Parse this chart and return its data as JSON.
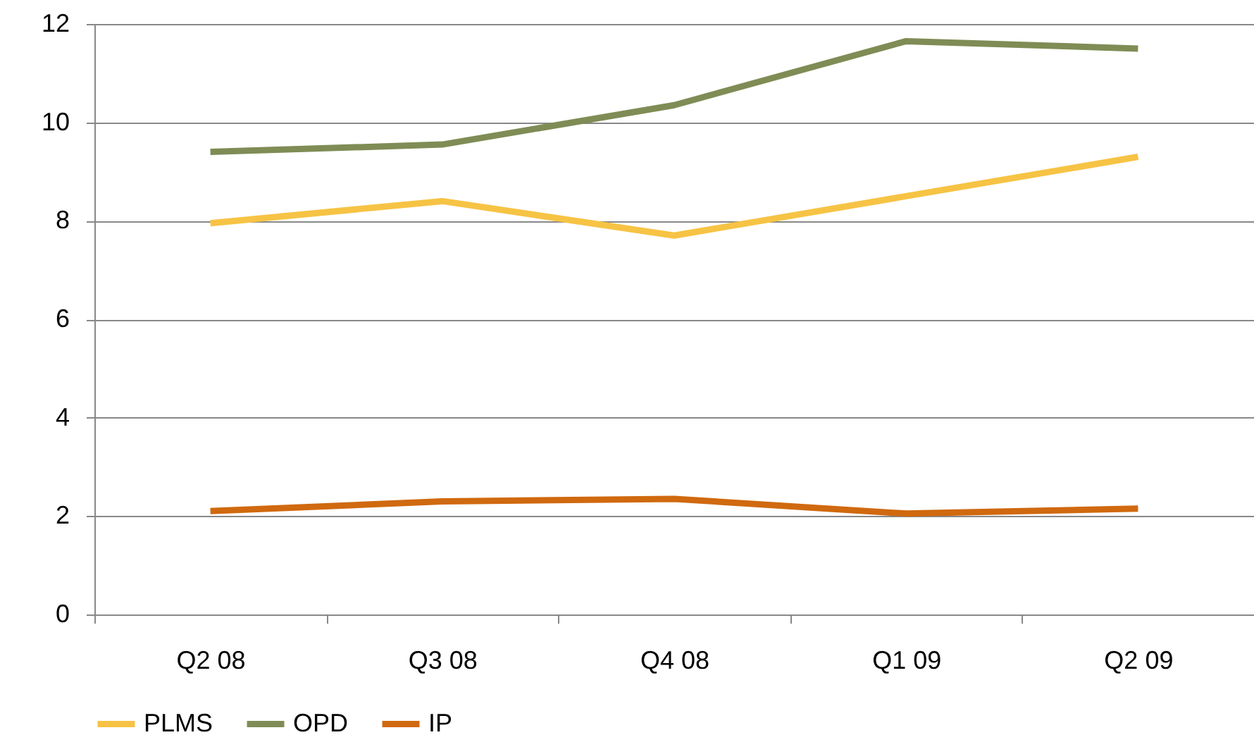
{
  "chart_data": {
    "type": "line",
    "categories": [
      "Q2 08",
      "Q3 08",
      "Q4 08",
      "Q1 09",
      "Q2 09"
    ],
    "series": [
      {
        "name": "PLMS",
        "color": "#f6c344",
        "values": [
          7.95,
          8.4,
          7.7,
          8.5,
          9.3
        ]
      },
      {
        "name": "OPD",
        "color": "#7f8c55",
        "values": [
          9.4,
          9.55,
          10.35,
          11.65,
          11.5
        ]
      },
      {
        "name": "IP",
        "color": "#d0690f",
        "values": [
          2.1,
          2.3,
          2.35,
          2.05,
          2.15
        ]
      }
    ],
    "ylim": [
      0,
      12
    ],
    "yticks": [
      0,
      2,
      4,
      6,
      8,
      10,
      12
    ],
    "grid": "y",
    "legend": "bottom",
    "marker": "none",
    "line_style": "solid"
  }
}
